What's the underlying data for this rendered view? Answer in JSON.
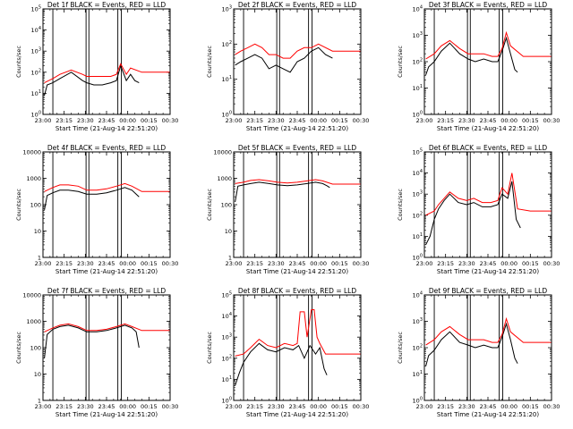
{
  "colors": {
    "events": "#000000",
    "lld": "#ff0000",
    "axes": "#000000",
    "background": "#ffffff"
  },
  "chart_data": [
    {
      "type": "line",
      "title": "Det 1f BLACK = Events, RED = LLD",
      "xlabel": "Start Time (21-Aug-14 22:51:20)",
      "ylabel": "Counts/sec",
      "yscale": "log",
      "ylim_exp": [
        0,
        5
      ],
      "ytick_labels": [
        "10^0",
        "10^1",
        "10^2",
        "10^3",
        "10^4",
        "10^5"
      ],
      "xlim": [
        "23:00",
        "00:30"
      ],
      "xtick_labels": [
        "23:00",
        "23:15",
        "23:30",
        "23:45",
        "00:00",
        "00:15",
        "00:30"
      ],
      "vlines": [
        "23:07",
        "23:30.5",
        "23:32.5",
        "23:53",
        "23:55.5"
      ],
      "series": [
        {
          "name": "Events",
          "x": [
            "23:01",
            "23:03",
            "23:07",
            "23:12",
            "23:20",
            "23:28",
            "23:31",
            "23:36",
            "23:42",
            "23:48",
            "23:52",
            "23:55",
            "23:59",
            "00:02",
            "00:05",
            "00:08"
          ],
          "y_exp": [
            0.9,
            1.4,
            1.5,
            1.7,
            2.0,
            1.6,
            1.5,
            1.4,
            1.4,
            1.5,
            1.6,
            2.3,
            1.6,
            1.9,
            1.6,
            1.5
          ]
        },
        {
          "name": "LLD",
          "x": [
            "23:01",
            "23:07",
            "23:12",
            "23:20",
            "23:28",
            "23:31",
            "23:36",
            "23:42",
            "23:48",
            "23:52",
            "23:55",
            "23:59",
            "00:02",
            "00:10",
            "00:20",
            "00:30"
          ],
          "y_exp": [
            1.5,
            1.7,
            1.9,
            2.1,
            1.9,
            1.8,
            1.8,
            1.8,
            1.8,
            1.9,
            2.4,
            1.9,
            2.2,
            2.0,
            2.0,
            2.0
          ]
        }
      ]
    },
    {
      "type": "line",
      "title": "Det 2f BLACK = Events, RED = LLD",
      "xlabel": "Start Time (21-Aug-14 22:51:20)",
      "ylabel": "Counts/sec",
      "yscale": "log",
      "ylim_exp": [
        0,
        3
      ],
      "ytick_labels": [
        "10^0",
        "10^1",
        "10^2",
        "10^3"
      ],
      "xlim": [
        "23:00",
        "00:30"
      ],
      "xtick_labels": [
        "23:00",
        "23:15",
        "23:30",
        "23:45",
        "00:00",
        "00:15",
        "00:30"
      ],
      "vlines": [
        "23:07",
        "23:30.5",
        "23:32.5",
        "23:53",
        "23:55.5"
      ],
      "series": [
        {
          "name": "Events",
          "x": [
            "23:01",
            "23:05",
            "23:10",
            "23:15",
            "23:20",
            "23:25",
            "23:30",
            "23:35",
            "23:40",
            "23:45",
            "23:50",
            "23:55",
            "00:00",
            "00:05",
            "00:10"
          ],
          "y_exp": [
            1.4,
            1.5,
            1.6,
            1.7,
            1.6,
            1.3,
            1.4,
            1.3,
            1.2,
            1.5,
            1.6,
            1.8,
            1.9,
            1.7,
            1.6
          ]
        },
        {
          "name": "LLD",
          "x": [
            "23:01",
            "23:05",
            "23:10",
            "23:15",
            "23:20",
            "23:25",
            "23:30",
            "23:35",
            "23:40",
            "23:45",
            "23:50",
            "23:55",
            "00:00",
            "00:10",
            "00:20",
            "00:30"
          ],
          "y_exp": [
            1.7,
            1.8,
            1.9,
            2.0,
            1.9,
            1.7,
            1.7,
            1.6,
            1.6,
            1.8,
            1.9,
            1.9,
            2.0,
            1.8,
            1.8,
            1.8
          ]
        }
      ]
    },
    {
      "type": "line",
      "title": "Det 3f BLACK = Events, RED = LLD",
      "xlabel": "Start Time (21-Aug-14 22:51:20)",
      "ylabel": "Counts/sec",
      "yscale": "log",
      "ylim_exp": [
        0,
        4
      ],
      "ytick_labels": [
        "10^0",
        "10^1",
        "10^2",
        "10^3",
        "10^4"
      ],
      "xlim": [
        "23:00",
        "00:30"
      ],
      "xtick_labels": [
        "23:00",
        "23:15",
        "23:30",
        "23:45",
        "00:00",
        "00:15",
        "00:30"
      ],
      "vlines": [
        "23:07",
        "23:30.5",
        "23:32.5",
        "23:53",
        "23:55.5"
      ],
      "series": [
        {
          "name": "Events",
          "x": [
            "23:01",
            "23:03",
            "23:07",
            "23:12",
            "23:18",
            "23:25",
            "23:31",
            "23:36",
            "23:42",
            "23:48",
            "23:52",
            "23:55",
            "23:58",
            "00:01",
            "00:04",
            "00:06"
          ],
          "y_exp": [
            1.5,
            1.8,
            2.0,
            2.4,
            2.7,
            2.3,
            2.1,
            2.0,
            2.1,
            2.0,
            2.0,
            2.4,
            2.9,
            2.3,
            1.7,
            1.6
          ]
        },
        {
          "name": "LLD",
          "x": [
            "23:01",
            "23:07",
            "23:12",
            "23:18",
            "23:25",
            "23:31",
            "23:36",
            "23:42",
            "23:48",
            "23:52",
            "23:55",
            "23:58",
            "00:01",
            "00:10",
            "00:20",
            "00:30"
          ],
          "y_exp": [
            2.1,
            2.3,
            2.6,
            2.8,
            2.5,
            2.3,
            2.3,
            2.3,
            2.2,
            2.2,
            2.5,
            3.1,
            2.6,
            2.2,
            2.2,
            2.2
          ]
        }
      ]
    },
    {
      "type": "line",
      "title": "Det 4f BLACK = Events, RED = LLD",
      "xlabel": "Start Time (21-Aug-14 22:51:20)",
      "ylabel": "Counts/sec",
      "yscale": "log",
      "ylim_exp": [
        0,
        4
      ],
      "ytick_labels": [
        "1",
        "10",
        "100",
        "1000",
        "10000"
      ],
      "xlim": [
        "23:00",
        "00:30"
      ],
      "xtick_labels": [
        "23:00",
        "23:15",
        "23:30",
        "23:45",
        "00:00",
        "00:15",
        "00:30"
      ],
      "vlines": [
        "23:07",
        "23:30.5",
        "23:32.5",
        "23:53",
        "23:55.5"
      ],
      "series": [
        {
          "name": "Events",
          "x": [
            "23:01",
            "23:03",
            "23:07",
            "23:12",
            "23:18",
            "23:25",
            "23:31",
            "23:38",
            "23:45",
            "23:52",
            "23:58",
            "00:03",
            "00:06",
            "00:08"
          ],
          "y_exp": [
            1.8,
            2.35,
            2.45,
            2.55,
            2.55,
            2.5,
            2.4,
            2.4,
            2.45,
            2.55,
            2.65,
            2.55,
            2.4,
            2.3
          ]
        },
        {
          "name": "LLD",
          "x": [
            "23:01",
            "23:07",
            "23:12",
            "23:18",
            "23:25",
            "23:31",
            "23:38",
            "23:45",
            "23:52",
            "23:58",
            "00:03",
            "00:10",
            "00:20",
            "00:30"
          ],
          "y_exp": [
            2.5,
            2.65,
            2.75,
            2.75,
            2.7,
            2.55,
            2.55,
            2.6,
            2.7,
            2.8,
            2.7,
            2.5,
            2.5,
            2.5
          ]
        }
      ]
    },
    {
      "type": "line",
      "title": "Det 5f BLACK = Events, RED = LLD",
      "xlabel": "Start Time (21-Aug-14 22:51:20)",
      "ylabel": "Counts/sec",
      "yscale": "log",
      "ylim_exp": [
        0,
        4
      ],
      "ytick_labels": [
        "1",
        "10",
        "100",
        "1000",
        "10000"
      ],
      "xlim": [
        "23:00",
        "00:30"
      ],
      "xtick_labels": [
        "23:00",
        "23:15",
        "23:30",
        "23:45",
        "00:00",
        "00:15",
        "00:30"
      ],
      "vlines": [
        "23:07",
        "23:30.5",
        "23:32.5",
        "23:53",
        "23:55.5"
      ],
      "series": [
        {
          "name": "Events",
          "x": [
            "23:01",
            "23:03",
            "23:07",
            "23:12",
            "23:18",
            "23:25",
            "23:31",
            "23:38",
            "23:45",
            "23:52",
            "23:58",
            "00:03",
            "00:06",
            "00:08"
          ],
          "y_exp": [
            2.1,
            2.7,
            2.75,
            2.8,
            2.85,
            2.8,
            2.75,
            2.72,
            2.75,
            2.8,
            2.85,
            2.8,
            2.72,
            2.65
          ]
        },
        {
          "name": "LLD",
          "x": [
            "23:01",
            "23:07",
            "23:12",
            "23:18",
            "23:25",
            "23:31",
            "23:38",
            "23:45",
            "23:52",
            "23:58",
            "00:03",
            "00:10",
            "00:20",
            "00:30"
          ],
          "y_exp": [
            2.8,
            2.85,
            2.92,
            2.95,
            2.9,
            2.85,
            2.82,
            2.85,
            2.9,
            2.95,
            2.9,
            2.78,
            2.78,
            2.78
          ]
        }
      ]
    },
    {
      "type": "line",
      "title": "Det 6f BLACK = Events, RED = LLD",
      "xlabel": "Start Time (21-Aug-14 22:51:20)",
      "ylabel": "Counts/sec",
      "yscale": "log",
      "ylim_exp": [
        0,
        5
      ],
      "ytick_labels": [
        "10^0",
        "10^1",
        "10^2",
        "10^3",
        "10^4",
        "10^5"
      ],
      "xlim": [
        "23:00",
        "00:30"
      ],
      "xtick_labels": [
        "23:00",
        "23:15",
        "23:30",
        "23:45",
        "00:00",
        "00:15",
        "00:30"
      ],
      "vlines": [
        "23:07",
        "23:30.5",
        "23:32.5",
        "23:53",
        "23:55.5"
      ],
      "series": [
        {
          "name": "Events",
          "x": [
            "23:01",
            "23:04",
            "23:07",
            "23:10",
            "23:14",
            "23:18",
            "23:24",
            "23:30",
            "23:35",
            "23:41",
            "23:47",
            "23:52",
            "23:55",
            "23:59",
            "00:02",
            "00:05",
            "00:08"
          ],
          "y_exp": [
            0.6,
            1.0,
            1.8,
            2.3,
            2.7,
            3.0,
            2.6,
            2.5,
            2.6,
            2.4,
            2.4,
            2.5,
            3.0,
            2.8,
            3.6,
            1.8,
            1.4
          ]
        },
        {
          "name": "LLD",
          "x": [
            "23:01",
            "23:07",
            "23:10",
            "23:14",
            "23:18",
            "23:24",
            "23:30",
            "23:35",
            "23:41",
            "23:47",
            "23:52",
            "23:55",
            "23:59",
            "00:02",
            "00:06",
            "00:15",
            "00:30"
          ],
          "y_exp": [
            2.0,
            2.2,
            2.5,
            2.8,
            3.1,
            2.8,
            2.7,
            2.8,
            2.6,
            2.6,
            2.7,
            3.3,
            3.0,
            4.0,
            2.3,
            2.2,
            2.2
          ]
        }
      ]
    },
    {
      "type": "line",
      "title": "Det 7f BLACK = Events, RED = LLD",
      "xlabel": "Start Time (21-Aug-14 22:51:20)",
      "ylabel": "Counts/sec",
      "yscale": "log",
      "ylim_exp": [
        0,
        4
      ],
      "ytick_labels": [
        "1",
        "10",
        "100",
        "1000",
        "10000"
      ],
      "xlim": [
        "23:00",
        "00:30"
      ],
      "xtick_labels": [
        "23:00",
        "23:15",
        "23:30",
        "23:45",
        "00:00",
        "00:15",
        "00:30"
      ],
      "vlines": [
        "23:07",
        "23:30.5",
        "23:32.5",
        "23:53",
        "23:55.5"
      ],
      "series": [
        {
          "name": "Events",
          "x": [
            "23:01",
            "23:03",
            "23:07",
            "23:12",
            "23:18",
            "23:25",
            "23:31",
            "23:38",
            "23:45",
            "23:52",
            "23:58",
            "00:03",
            "00:06",
            "00:08"
          ],
          "y_exp": [
            1.6,
            2.5,
            2.7,
            2.8,
            2.85,
            2.75,
            2.6,
            2.6,
            2.65,
            2.75,
            2.85,
            2.75,
            2.6,
            2.0
          ]
        },
        {
          "name": "LLD",
          "x": [
            "23:01",
            "23:07",
            "23:12",
            "23:18",
            "23:25",
            "23:31",
            "23:38",
            "23:45",
            "23:52",
            "23:58",
            "00:03",
            "00:10",
            "00:20",
            "00:30"
          ],
          "y_exp": [
            2.6,
            2.75,
            2.85,
            2.9,
            2.8,
            2.65,
            2.65,
            2.7,
            2.8,
            2.9,
            2.8,
            2.65,
            2.65,
            2.65
          ]
        }
      ]
    },
    {
      "type": "line",
      "title": "Det 8f BLACK = Events, RED = LLD",
      "xlabel": "Start Time (21-Aug-14 22:51:20)",
      "ylabel": "Counts/sec",
      "yscale": "log",
      "ylim_exp": [
        0,
        5
      ],
      "ytick_labels": [
        "10^0",
        "10^1",
        "10^2",
        "10^3",
        "10^4",
        "10^5"
      ],
      "xlim": [
        "23:00",
        "00:30"
      ],
      "xtick_labels": [
        "23:00",
        "23:15",
        "23:30",
        "23:45",
        "00:00",
        "00:15",
        "00:30"
      ],
      "vlines": [
        "23:07",
        "23:30.5",
        "23:32.5",
        "23:53",
        "23:55.5"
      ],
      "series": [
        {
          "name": "Events",
          "x": [
            "23:01",
            "23:04",
            "23:07",
            "23:12",
            "23:18",
            "23:24",
            "23:30",
            "23:36",
            "23:42",
            "23:46",
            "23:50",
            "23:54",
            "23:58",
            "00:01",
            "00:04",
            "00:06"
          ],
          "y_exp": [
            0.7,
            1.3,
            1.8,
            2.3,
            2.7,
            2.4,
            2.3,
            2.5,
            2.4,
            2.6,
            2.0,
            2.6,
            2.2,
            2.5,
            1.5,
            1.2
          ]
        },
        {
          "name": "LLD",
          "x": [
            "23:01",
            "23:07",
            "23:12",
            "23:18",
            "23:24",
            "23:30",
            "23:36",
            "23:42",
            "23:45",
            "23:47",
            "23:50",
            "23:52",
            "23:55",
            "23:57",
            "23:59",
            "00:01",
            "00:05",
            "00:15",
            "00:30"
          ],
          "y_exp": [
            2.1,
            2.2,
            2.5,
            2.9,
            2.6,
            2.5,
            2.7,
            2.6,
            2.7,
            4.2,
            4.2,
            3.0,
            4.3,
            4.3,
            3.0,
            2.7,
            2.2,
            2.2,
            2.2
          ]
        }
      ]
    },
    {
      "type": "line",
      "title": "Det 9f BLACK = Events, RED = LLD",
      "xlabel": "Start Time (21-Aug-14 22:51:20)",
      "ylabel": "Counts/sec",
      "yscale": "log",
      "ylim_exp": [
        0,
        4
      ],
      "ytick_labels": [
        "10^0",
        "10^1",
        "10^2",
        "10^3",
        "10^4"
      ],
      "xlim": [
        "23:00",
        "00:30"
      ],
      "xtick_labels": [
        "23:00",
        "23:15",
        "23:30",
        "23:45",
        "00:00",
        "00:15",
        "00:30"
      ],
      "vlines": [
        "23:07",
        "23:30.5",
        "23:32.5",
        "23:53",
        "23:55.5"
      ],
      "series": [
        {
          "name": "Events",
          "x": [
            "23:01",
            "23:03",
            "23:07",
            "23:12",
            "23:18",
            "23:25",
            "23:31",
            "23:36",
            "23:42",
            "23:48",
            "23:52",
            "23:55",
            "23:58",
            "00:01",
            "00:04",
            "00:06"
          ],
          "y_exp": [
            1.3,
            1.7,
            1.9,
            2.3,
            2.6,
            2.2,
            2.1,
            2.0,
            2.1,
            2.0,
            2.0,
            2.4,
            2.9,
            2.3,
            1.6,
            1.4
          ]
        },
        {
          "name": "LLD",
          "x": [
            "23:01",
            "23:07",
            "23:12",
            "23:18",
            "23:25",
            "23:31",
            "23:36",
            "23:42",
            "23:48",
            "23:52",
            "23:55",
            "23:58",
            "00:01",
            "00:10",
            "00:20",
            "00:30"
          ],
          "y_exp": [
            2.1,
            2.3,
            2.6,
            2.8,
            2.5,
            2.3,
            2.3,
            2.3,
            2.2,
            2.2,
            2.5,
            3.1,
            2.6,
            2.2,
            2.2,
            2.2
          ]
        }
      ]
    }
  ]
}
